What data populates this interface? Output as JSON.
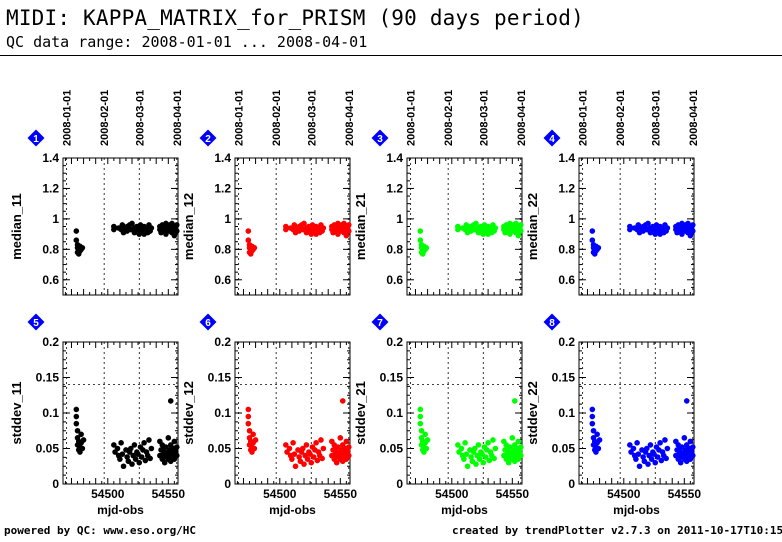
{
  "header": {
    "title": "MIDI: KAPPA_MATRIX_for_PRISM (90 days period)",
    "subtitle": "QC data range: 2008-01-01 ... 2008-04-01"
  },
  "footer": {
    "left": "powered by QC: www.eso.org/HC",
    "right": "created by trendPlotter v2.7.3 on 2011-10-17T10:15:56"
  },
  "colors": {
    "black": "#000000",
    "red": "#ff0000",
    "green": "#00ff00",
    "blue": "#0000ff",
    "marker": "#0000ff"
  },
  "chart_data": [
    {
      "type": "scatter",
      "marker": "1",
      "row": "median",
      "ylabel": "median_11",
      "color": "#000000",
      "ylim": [
        0.5,
        1.4
      ],
      "yticks": [
        0.6,
        0.8,
        1,
        1.2,
        1.4
      ],
      "xlim": [
        54463,
        54558
      ],
      "date_ticks": [
        "2008-01-01",
        "2008-02-01",
        "2008-03-01",
        "2008-04-01"
      ],
      "date_ticks_mjd": [
        54466,
        54497,
        54526,
        54557
      ],
      "xticks": [],
      "xlabel": "",
      "ref_line": null,
      "grid_dashed_vertical": true
    },
    {
      "type": "scatter",
      "marker": "2",
      "row": "median",
      "ylabel": "median_12",
      "color": "#ff0000",
      "ylim": [
        0.5,
        1.4
      ],
      "yticks": [
        0.6,
        0.8,
        1,
        1.2,
        1.4
      ],
      "xlim": [
        54463,
        54558
      ],
      "date_ticks": [
        "2008-01-01",
        "2008-02-01",
        "2008-03-01",
        "2008-04-01"
      ],
      "date_ticks_mjd": [
        54466,
        54497,
        54526,
        54557
      ],
      "xticks": [],
      "xlabel": "",
      "ref_line": null,
      "grid_dashed_vertical": true
    },
    {
      "type": "scatter",
      "marker": "3",
      "row": "median",
      "ylabel": "median_21",
      "color": "#00ff00",
      "ylim": [
        0.5,
        1.4
      ],
      "yticks": [
        0.6,
        0.8,
        1,
        1.2,
        1.4
      ],
      "xlim": [
        54463,
        54558
      ],
      "date_ticks": [
        "2008-01-01",
        "2008-02-01",
        "2008-03-01",
        "2008-04-01"
      ],
      "date_ticks_mjd": [
        54466,
        54497,
        54526,
        54557
      ],
      "xticks": [],
      "xlabel": "",
      "ref_line": null,
      "grid_dashed_vertical": true
    },
    {
      "type": "scatter",
      "marker": "4",
      "row": "median",
      "ylabel": "median_22",
      "color": "#0000ff",
      "ylim": [
        0.5,
        1.4
      ],
      "yticks": [
        0.6,
        0.8,
        1,
        1.2,
        1.4
      ],
      "xlim": [
        54463,
        54558
      ],
      "date_ticks": [
        "2008-01-01",
        "2008-02-01",
        "2008-03-01",
        "2008-04-01"
      ],
      "date_ticks_mjd": [
        54466,
        54497,
        54526,
        54557
      ],
      "xticks": [],
      "xlabel": "",
      "ref_line": null,
      "grid_dashed_vertical": true
    },
    {
      "type": "scatter",
      "marker": "5",
      "row": "stddev",
      "ylabel": "stddev_11",
      "color": "#000000",
      "ylim": [
        0,
        0.2
      ],
      "yticks": [
        0,
        0.05,
        0.1,
        0.15,
        0.2
      ],
      "xlim": [
        54463,
        54558
      ],
      "date_ticks": [],
      "date_ticks_mjd": [
        54466,
        54497,
        54526,
        54557
      ],
      "xticks": [
        54500,
        54550
      ],
      "xlabel": "mjd-obs",
      "ref_line": 0.14,
      "grid_dashed_vertical": true
    },
    {
      "type": "scatter",
      "marker": "6",
      "row": "stddev",
      "ylabel": "stddev_12",
      "color": "#ff0000",
      "ylim": [
        0,
        0.2
      ],
      "yticks": [
        0,
        0.05,
        0.1,
        0.15,
        0.2
      ],
      "xlim": [
        54463,
        54558
      ],
      "date_ticks": [],
      "date_ticks_mjd": [
        54466,
        54497,
        54526,
        54557
      ],
      "xticks": [
        54500,
        54550
      ],
      "xlabel": "mjd-obs",
      "ref_line": 0.14,
      "grid_dashed_vertical": true
    },
    {
      "type": "scatter",
      "marker": "7",
      "row": "stddev",
      "ylabel": "stddev_21",
      "color": "#00ff00",
      "ylim": [
        0,
        0.2
      ],
      "yticks": [
        0,
        0.05,
        0.1,
        0.15,
        0.2
      ],
      "xlim": [
        54463,
        54558
      ],
      "date_ticks": [],
      "date_ticks_mjd": [
        54466,
        54497,
        54526,
        54557
      ],
      "xticks": [
        54500,
        54550
      ],
      "xlabel": "mjd-obs",
      "ref_line": 0.14,
      "grid_dashed_vertical": true
    },
    {
      "type": "scatter",
      "marker": "8",
      "row": "stddev",
      "ylabel": "stddev_22",
      "color": "#0000ff",
      "ylim": [
        0,
        0.2
      ],
      "yticks": [
        0,
        0.05,
        0.1,
        0.15,
        0.2
      ],
      "xlim": [
        54463,
        54558
      ],
      "date_ticks": [],
      "date_ticks_mjd": [
        54466,
        54497,
        54526,
        54557
      ],
      "xticks": [
        54500,
        54550
      ],
      "xlabel": "mjd-obs",
      "ref_line": 0.14,
      "grid_dashed_vertical": true
    }
  ],
  "median_points": [
    [
      54474,
      0.92
    ],
    [
      54474,
      0.86
    ],
    [
      54475,
      0.83
    ],
    [
      54475,
      0.81
    ],
    [
      54475,
      0.78
    ],
    [
      54476,
      0.8
    ],
    [
      54476,
      0.77
    ],
    [
      54477,
      0.79
    ],
    [
      54477,
      0.82
    ],
    [
      54478,
      0.8
    ],
    [
      54479,
      0.81
    ],
    [
      54505,
      0.95
    ],
    [
      54505,
      0.93
    ],
    [
      54509,
      0.94
    ],
    [
      54511,
      0.93
    ],
    [
      54512,
      0.96
    ],
    [
      54513,
      0.91
    ],
    [
      54514,
      0.94
    ],
    [
      54516,
      0.95
    ],
    [
      54516,
      0.92
    ],
    [
      54518,
      0.96
    ],
    [
      54519,
      0.93
    ],
    [
      54520,
      0.97
    ],
    [
      54522,
      0.94
    ],
    [
      54522,
      0.91
    ],
    [
      54524,
      0.95
    ],
    [
      54525,
      0.93
    ],
    [
      54526,
      0.9
    ],
    [
      54527,
      0.96
    ],
    [
      54528,
      0.92
    ],
    [
      54529,
      0.94
    ],
    [
      54530,
      0.9
    ],
    [
      54530,
      0.95
    ],
    [
      54532,
      0.93
    ],
    [
      54533,
      0.91
    ],
    [
      54534,
      0.96
    ],
    [
      54535,
      0.92
    ],
    [
      54536,
      0.94
    ],
    [
      54543,
      0.95
    ],
    [
      54543,
      0.93
    ],
    [
      54544,
      0.91
    ],
    [
      54545,
      0.96
    ],
    [
      54545,
      0.94
    ],
    [
      54546,
      0.92
    ],
    [
      54547,
      0.95
    ],
    [
      54548,
      0.9
    ],
    [
      54548,
      0.97
    ],
    [
      54549,
      0.93
    ],
    [
      54550,
      0.95
    ],
    [
      54551,
      0.92
    ],
    [
      54551,
      0.96
    ],
    [
      54552,
      0.94
    ],
    [
      54553,
      0.91
    ],
    [
      54553,
      0.97
    ],
    [
      54554,
      0.93
    ],
    [
      54555,
      0.95
    ],
    [
      54555,
      0.89
    ],
    [
      54556,
      0.94
    ],
    [
      54557,
      0.92
    ],
    [
      54557,
      0.96
    ]
  ],
  "stddev_points": [
    [
      54474,
      0.105
    ],
    [
      54474,
      0.095
    ],
    [
      54474,
      0.085
    ],
    [
      54475,
      0.075
    ],
    [
      54475,
      0.065
    ],
    [
      54475,
      0.055
    ],
    [
      54476,
      0.048
    ],
    [
      54476,
      0.06
    ],
    [
      54477,
      0.052
    ],
    [
      54477,
      0.045
    ],
    [
      54478,
      0.07
    ],
    [
      54478,
      0.058
    ],
    [
      54479,
      0.05
    ],
    [
      54480,
      0.062
    ],
    [
      54505,
      0.055
    ],
    [
      54506,
      0.045
    ],
    [
      54508,
      0.05
    ],
    [
      54509,
      0.04
    ],
    [
      54510,
      0.035
    ],
    [
      54511,
      0.058
    ],
    [
      54512,
      0.042
    ],
    [
      54513,
      0.025
    ],
    [
      54515,
      0.048
    ],
    [
      54516,
      0.038
    ],
    [
      54517,
      0.032
    ],
    [
      54518,
      0.045
    ],
    [
      54519,
      0.05
    ],
    [
      54520,
      0.028
    ],
    [
      54521,
      0.04
    ],
    [
      54522,
      0.055
    ],
    [
      54523,
      0.035
    ],
    [
      54524,
      0.045
    ],
    [
      54525,
      0.042
    ],
    [
      54526,
      0.03
    ],
    [
      54527,
      0.052
    ],
    [
      54528,
      0.038
    ],
    [
      54529,
      0.048
    ],
    [
      54530,
      0.058
    ],
    [
      54531,
      0.033
    ],
    [
      54532,
      0.045
    ],
    [
      54533,
      0.04
    ],
    [
      54534,
      0.062
    ],
    [
      54535,
      0.036
    ],
    [
      54536,
      0.05
    ],
    [
      54543,
      0.06
    ],
    [
      54543,
      0.04
    ],
    [
      54544,
      0.048
    ],
    [
      54545,
      0.035
    ],
    [
      54545,
      0.055
    ],
    [
      54546,
      0.042
    ],
    [
      54546,
      0.05
    ],
    [
      54547,
      0.03
    ],
    [
      54547,
      0.045
    ],
    [
      54548,
      0.038
    ],
    [
      54548,
      0.052
    ],
    [
      54549,
      0.043
    ],
    [
      54550,
      0.035
    ],
    [
      54550,
      0.065
    ],
    [
      54551,
      0.048
    ],
    [
      54551,
      0.04
    ],
    [
      54552,
      0.032
    ],
    [
      54552,
      0.055
    ],
    [
      54553,
      0.045
    ],
    [
      54553,
      0.038
    ],
    [
      54554,
      0.05
    ],
    [
      54554,
      0.042
    ],
    [
      54555,
      0.035
    ],
    [
      54555,
      0.06
    ],
    [
      54556,
      0.048
    ],
    [
      54556,
      0.044
    ],
    [
      54557,
      0.04
    ],
    [
      54557,
      0.052
    ],
    [
      54552,
      0.117
    ]
  ]
}
